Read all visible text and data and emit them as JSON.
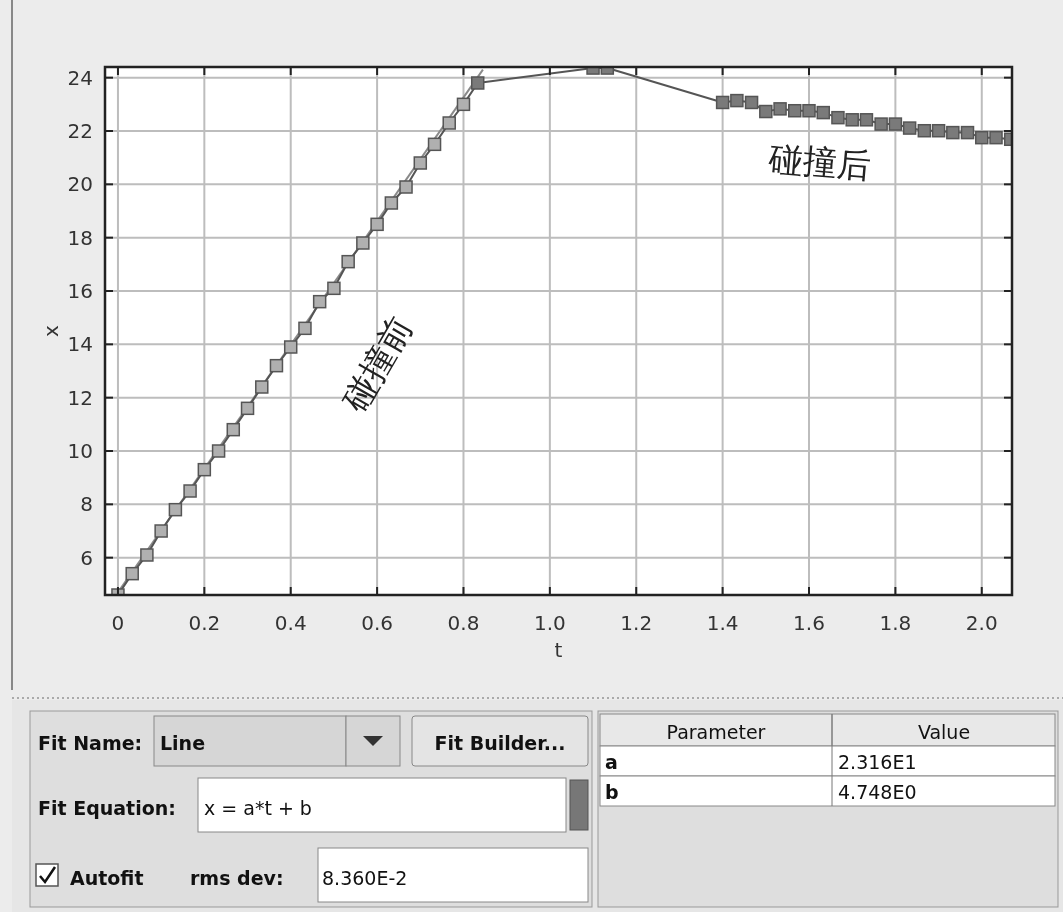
{
  "chart_data": [
    {
      "type": "line",
      "xlabel": "t",
      "ylabel": "x",
      "xlim": [
        -0.03,
        2.07
      ],
      "ylim": [
        4.6,
        24.4
      ],
      "xticks": [
        0,
        0.2,
        0.4,
        0.6,
        0.8,
        {
          "value": 1,
          "label": "1.0"
        },
        1.2,
        1.4,
        1.6,
        1.8,
        {
          "value": 2,
          "label": "2.0"
        }
      ],
      "yticks": [
        6,
        8,
        10,
        12,
        14,
        16,
        18,
        20,
        22,
        24
      ],
      "grid": true,
      "series": [
        {
          "type": "line",
          "marker": "square",
          "color": "#555555",
          "x": [
            0,
            0.033,
            0.067,
            0.1,
            0.133,
            0.167,
            0.2,
            0.233,
            0.267,
            0.3,
            0.333,
            0.367,
            0.4,
            0.433,
            0.467,
            0.5,
            0.533,
            0.567,
            0.6,
            0.633,
            0.667,
            0.7,
            0.733,
            0.767,
            0.8,
            0.833,
            1.1,
            1.133,
            1.4,
            1.433,
            1.467,
            1.5,
            1.533,
            1.567,
            1.6,
            1.633,
            1.667,
            1.7,
            1.733,
            1.767,
            1.8,
            1.833,
            1.867,
            1.9,
            1.933,
            1.967,
            2.0,
            2.033,
            2.067
          ],
          "values": [
            4.6,
            5.4,
            6.1,
            7.0,
            7.8,
            8.5,
            9.3,
            10.0,
            10.8,
            11.6,
            12.4,
            13.2,
            13.9,
            14.6,
            15.6,
            16.1,
            17.1,
            17.8,
            18.5,
            19.3,
            19.9,
            20.8,
            21.5,
            22.3,
            23.0,
            23.8,
            24.36,
            24.36,
            23.07,
            23.14,
            23.07,
            22.73,
            22.83,
            22.76,
            22.76,
            22.69,
            22.5,
            22.42,
            22.42,
            22.26,
            22.26,
            22.11,
            22.01,
            22.01,
            21.94,
            21.94,
            21.75,
            21.75,
            21.69
          ],
          "colors": [
            "#b0b0b0",
            "#b0b0b0",
            "#b0b0b0",
            "#b0b0b0",
            "#b0b0b0",
            "#b0b0b0",
            "#b0b0b0",
            "#b0b0b0",
            "#b0b0b0",
            "#b0b0b0",
            "#b0b0b0",
            "#b0b0b0",
            "#b0b0b0",
            "#b0b0b0",
            "#b0b0b0",
            "#b0b0b0",
            "#b0b0b0",
            "#b0b0b0",
            "#b0b0b0",
            "#b0b0b0",
            "#b0b0b0",
            "#b0b0b0",
            "#b0b0b0",
            "#b0b0b0",
            "#b0b0b0",
            "#7a7a7a",
            "#7a7a7a",
            "#7a7a7a",
            "#7a7a7a",
            "#7a7a7a",
            "#7a7a7a",
            "#7a7a7a",
            "#7a7a7a",
            "#7a7a7a",
            "#7a7a7a",
            "#7a7a7a",
            "#7a7a7a",
            "#7a7a7a",
            "#7a7a7a",
            "#7a7a7a",
            "#7a7a7a",
            "#7a7a7a",
            "#7a7a7a",
            "#7a7a7a",
            "#7a7a7a",
            "#7a7a7a",
            "#7a7a7a",
            "#7a7a7a",
            "#7a7a7a"
          ]
        },
        {
          "type": "line",
          "marker": "none",
          "color": "#8a8a8a",
          "x": [
            0,
            0.845
          ],
          "values": [
            4.7,
            24.3
          ]
        }
      ],
      "annotations": [
        "碰撞前",
        "碰撞后"
      ]
    },
    {
      "type": "other",
      "annotations": [
        "Fit Name:",
        "Line",
        "Fit Builder...",
        "Fit Equation:",
        "x = a*t + b",
        "Autofit",
        "rms dev:",
        "8.360E-2",
        "Parameter",
        "Value",
        "a",
        "2.316E1",
        "b",
        "4.748E0"
      ]
    }
  ]
}
